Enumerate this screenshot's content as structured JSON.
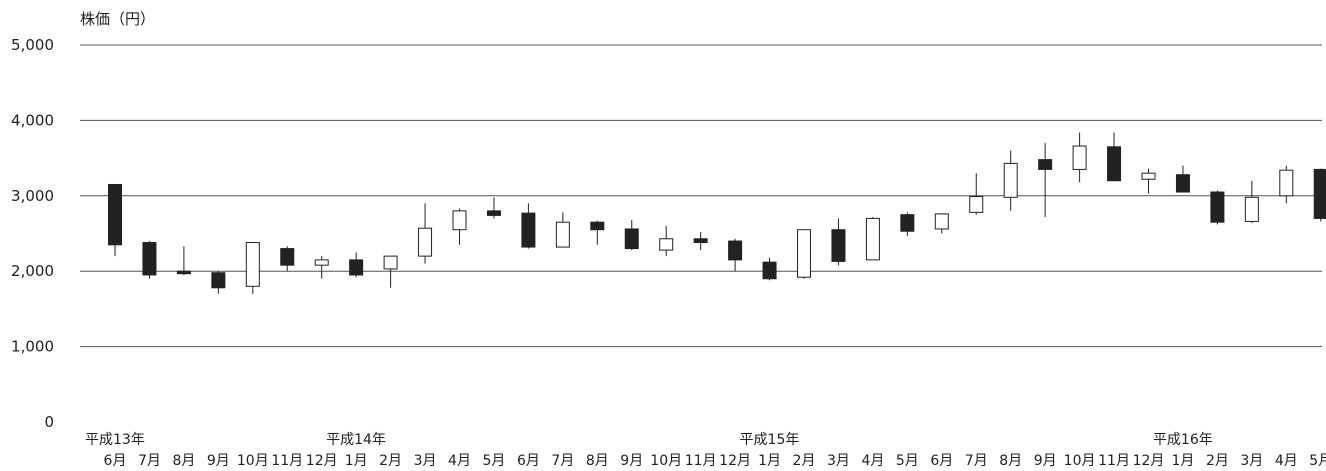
{
  "chart_data": {
    "type": "candlestick",
    "title": "",
    "ylabel": "株価（円）",
    "xlabel": "",
    "ylim": [
      0,
      5000
    ],
    "yticks": [
      {
        "value": 0,
        "label": "0"
      },
      {
        "value": 1000,
        "label": "1,000"
      },
      {
        "value": 2000,
        "label": "2,000"
      },
      {
        "value": 3000,
        "label": "3,000"
      },
      {
        "value": 4000,
        "label": "4,000"
      },
      {
        "value": 5000,
        "label": "5,000"
      }
    ],
    "grid": true,
    "era_labels": [
      {
        "index": 0,
        "label": "平成13年"
      },
      {
        "index": 7,
        "label": "平成14年"
      },
      {
        "index": 19,
        "label": "平成15年"
      },
      {
        "index": 31,
        "label": "平成16年"
      }
    ],
    "candles": [
      {
        "month": "6月",
        "open": 3150,
        "high": 3150,
        "low": 2200,
        "close": 2350
      },
      {
        "month": "7月",
        "open": 2380,
        "high": 2400,
        "low": 1900,
        "close": 1950
      },
      {
        "month": "8月",
        "open": 2000,
        "high": 2330,
        "low": 1950,
        "close": 1970
      },
      {
        "month": "9月",
        "open": 1980,
        "high": 2000,
        "low": 1700,
        "close": 1780
      },
      {
        "month": "10月",
        "open": 1800,
        "high": 2380,
        "low": 1700,
        "close": 2380
      },
      {
        "month": "11月",
        "open": 2300,
        "high": 2330,
        "low": 2000,
        "close": 2080
      },
      {
        "month": "12月",
        "open": 2080,
        "high": 2200,
        "low": 1900,
        "close": 2150
      },
      {
        "month": "1月",
        "open": 2150,
        "high": 2250,
        "low": 1920,
        "close": 1950
      },
      {
        "month": "2月",
        "open": 2030,
        "high": 2200,
        "low": 1780,
        "close": 2200
      },
      {
        "month": "3月",
        "open": 2200,
        "high": 2900,
        "low": 2100,
        "close": 2570
      },
      {
        "month": "4月",
        "open": 2550,
        "high": 2830,
        "low": 2350,
        "close": 2800
      },
      {
        "month": "5月",
        "open": 2800,
        "high": 2980,
        "low": 2700,
        "close": 2740
      },
      {
        "month": "6月",
        "open": 2770,
        "high": 2900,
        "low": 2300,
        "close": 2320
      },
      {
        "month": "7月",
        "open": 2320,
        "high": 2780,
        "low": 2320,
        "close": 2650
      },
      {
        "month": "8月",
        "open": 2650,
        "high": 2670,
        "low": 2350,
        "close": 2550
      },
      {
        "month": "9月",
        "open": 2560,
        "high": 2680,
        "low": 2280,
        "close": 2300
      },
      {
        "month": "10月",
        "open": 2280,
        "high": 2600,
        "low": 2200,
        "close": 2430
      },
      {
        "month": "11月",
        "open": 2430,
        "high": 2520,
        "low": 2280,
        "close": 2380
      },
      {
        "month": "12月",
        "open": 2400,
        "high": 2430,
        "low": 2000,
        "close": 2150
      },
      {
        "month": "1月",
        "open": 2120,
        "high": 2180,
        "low": 1880,
        "close": 1900
      },
      {
        "month": "2月",
        "open": 1920,
        "high": 2550,
        "low": 1900,
        "close": 2550
      },
      {
        "month": "3月",
        "open": 2550,
        "high": 2700,
        "low": 2080,
        "close": 2130
      },
      {
        "month": "4月",
        "open": 2150,
        "high": 2720,
        "low": 2150,
        "close": 2700
      },
      {
        "month": "5月",
        "open": 2750,
        "high": 2780,
        "low": 2470,
        "close": 2530
      },
      {
        "month": "6月",
        "open": 2560,
        "high": 2770,
        "low": 2500,
        "close": 2760
      },
      {
        "month": "7月",
        "open": 2780,
        "high": 3300,
        "low": 2750,
        "close": 2990
      },
      {
        "month": "8月",
        "open": 2980,
        "high": 3600,
        "low": 2800,
        "close": 3430
      },
      {
        "month": "9月",
        "open": 3480,
        "high": 3700,
        "low": 2720,
        "close": 3350
      },
      {
        "month": "10月",
        "open": 3350,
        "high": 3840,
        "low": 3180,
        "close": 3660
      },
      {
        "month": "11月",
        "open": 3650,
        "high": 3840,
        "low": 3200,
        "close": 3200
      },
      {
        "month": "12月",
        "open": 3220,
        "high": 3360,
        "low": 3030,
        "close": 3300
      },
      {
        "month": "1月",
        "open": 3280,
        "high": 3400,
        "low": 3050,
        "close": 3050
      },
      {
        "month": "2月",
        "open": 3050,
        "high": 3070,
        "low": 2620,
        "close": 2650
      },
      {
        "month": "3月",
        "open": 2660,
        "high": 3200,
        "low": 2640,
        "close": 2980
      },
      {
        "month": "4月",
        "open": 3000,
        "high": 3400,
        "low": 2900,
        "close": 3340
      },
      {
        "month": "5月",
        "open": 3350,
        "high": 3360,
        "low": 2660,
        "close": 2700
      }
    ]
  }
}
